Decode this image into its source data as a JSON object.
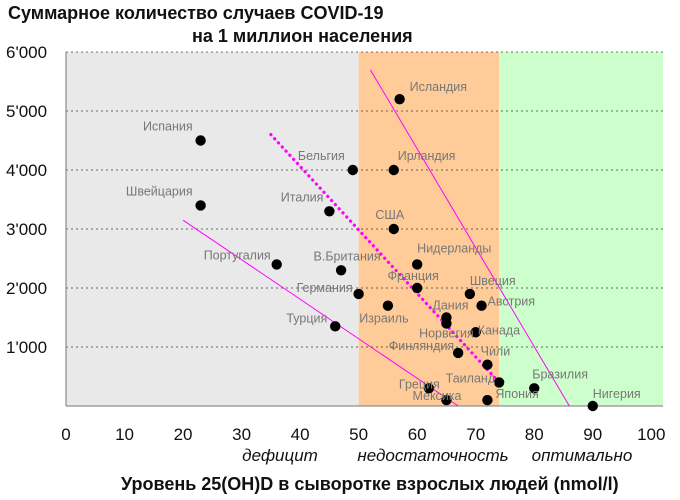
{
  "chart_data": {
    "type": "scatter",
    "title": [
      "Суммарное количество случаев COVID-19",
      "на 1 миллион населения"
    ],
    "xlabel": "Уровень 25(OH)D в сыворотке взрослых людей (nmol/l)",
    "ylabel": "",
    "xlim": [
      0,
      102
    ],
    "ylim": [
      0,
      6000
    ],
    "x_ticks": [
      0,
      10,
      20,
      30,
      40,
      50,
      60,
      70,
      80,
      90,
      100
    ],
    "x_tick_labels": [
      "0",
      "10",
      "20",
      "30",
      "40",
      "50",
      "60",
      "70",
      "80",
      "90",
      "100"
    ],
    "y_ticks": [
      1000,
      2000,
      3000,
      4000,
      5000,
      6000
    ],
    "y_tick_labels": [
      "1'000",
      "2'000",
      "3'000",
      "4'000",
      "5'000",
      "6'000"
    ],
    "zones": [
      {
        "label": "дефицит",
        "x_range": [
          0,
          50
        ],
        "color": "#e9e9e9"
      },
      {
        "label": "недостаточность",
        "x_range": [
          50,
          74
        ],
        "color": "#ffcc99"
      },
      {
        "label": "оптимально",
        "x_range": [
          74,
          102
        ],
        "color": "#ccffcc"
      }
    ],
    "points": [
      {
        "name": "Исландия",
        "x": 57,
        "y": 5200
      },
      {
        "name": "Испания",
        "x": 23,
        "y": 4500
      },
      {
        "name": "Бельгия",
        "x": 49,
        "y": 4000
      },
      {
        "name": "Ирландия",
        "x": 56,
        "y": 4000
      },
      {
        "name": "Швейцария",
        "x": 23,
        "y": 3400
      },
      {
        "name": "Италия",
        "x": 45,
        "y": 3300
      },
      {
        "name": "США",
        "x": 56,
        "y": 3000
      },
      {
        "name": "Португалия",
        "x": 36,
        "y": 2400
      },
      {
        "name": "В.Британия",
        "x": 47,
        "y": 2300
      },
      {
        "name": "Нидерланды",
        "x": 60,
        "y": 2400
      },
      {
        "name": "Франция",
        "x": 60,
        "y": 2000
      },
      {
        "name": "Швеция",
        "x": 69,
        "y": 1900
      },
      {
        "name": "Германия",
        "x": 50,
        "y": 1900
      },
      {
        "name": "Израиль",
        "x": 55,
        "y": 1700
      },
      {
        "name": "Австрия",
        "x": 71,
        "y": 1700
      },
      {
        "name": "Дания",
        "x": 65,
        "y": 1500
      },
      {
        "name": "Норвегия",
        "x": 65,
        "y": 1400
      },
      {
        "name": "Турция",
        "x": 46,
        "y": 1350
      },
      {
        "name": "Канада",
        "x": 70,
        "y": 1250
      },
      {
        "name": "Финляндия",
        "x": 67,
        "y": 900
      },
      {
        "name": "Чили",
        "x": 72,
        "y": 700
      },
      {
        "name": "Греция",
        "x": 62,
        "y": 300
      },
      {
        "name": "Таиланд",
        "x": 74,
        "y": 400
      },
      {
        "name": "Бразилия",
        "x": 80,
        "y": 300
      },
      {
        "name": "Мексика",
        "x": 65,
        "y": 100
      },
      {
        "name": "Япония",
        "x": 72,
        "y": 100
      },
      {
        "name": "Нигерия",
        "x": 90,
        "y": 0
      }
    ],
    "trend_lines": [
      {
        "style": "dotted",
        "color": "#ff00ff",
        "from": [
          35,
          4600
        ],
        "to": [
          74,
          400
        ]
      },
      {
        "style": "solid",
        "color": "#ff00ff",
        "from": [
          52,
          5700
        ],
        "to": [
          86,
          0
        ]
      },
      {
        "style": "solid",
        "color": "#ff00ff",
        "from": [
          20,
          3150
        ],
        "to": [
          67,
          0
        ]
      }
    ],
    "colors": {
      "point": "#000000",
      "point_label": "#777777",
      "trend": "#ff00ff"
    }
  }
}
